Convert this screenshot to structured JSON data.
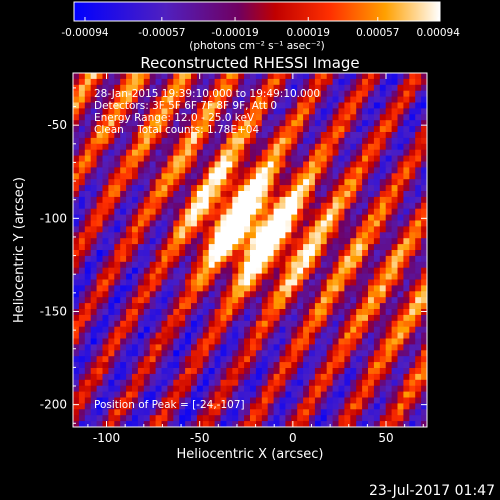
{
  "colorbar": {
    "ticks": [
      "-0.00094",
      "-0.00057",
      "-0.00019",
      "0.00019",
      "0.00057",
      "0.00094"
    ],
    "units": "(photons cm⁻² s⁻¹ asec⁻²)",
    "range": [
      -0.00094,
      0.00094
    ]
  },
  "plot": {
    "title": "Reconstructed RHESSI Image",
    "annotations": {
      "time": "28-Jan-2015 19:39:10.000 to 19:49:10.000",
      "detectors": "Detectors: 3F 5F 6F 7F 8F 9F, Att 0",
      "energy": "Energy Range: 12.0 - 25.0 keV",
      "clean": "Clean    Total counts: 1.78E+04",
      "peak": "Position of Peak = [-24,-107]"
    }
  },
  "footer": {
    "timestamp": "23-Jul-2017 01:47"
  },
  "chart_data": {
    "type": "heatmap",
    "title": "Reconstructed RHESSI Image",
    "xlabel": "Heliocentric X (arcsec)",
    "ylabel": "Heliocentric Y (arcsec)",
    "xlim": [
      -118,
      72
    ],
    "ylim": [
      -212,
      -22
    ],
    "xticks": [
      -100,
      -50,
      0,
      50
    ],
    "yticks": [
      -50,
      -100,
      -150,
      -200
    ],
    "peak": [
      -24,
      -107
    ],
    "colorscale": "blue-purple-red-orange-yellow-white",
    "value_range": [
      -0.00094,
      0.00094
    ]
  }
}
